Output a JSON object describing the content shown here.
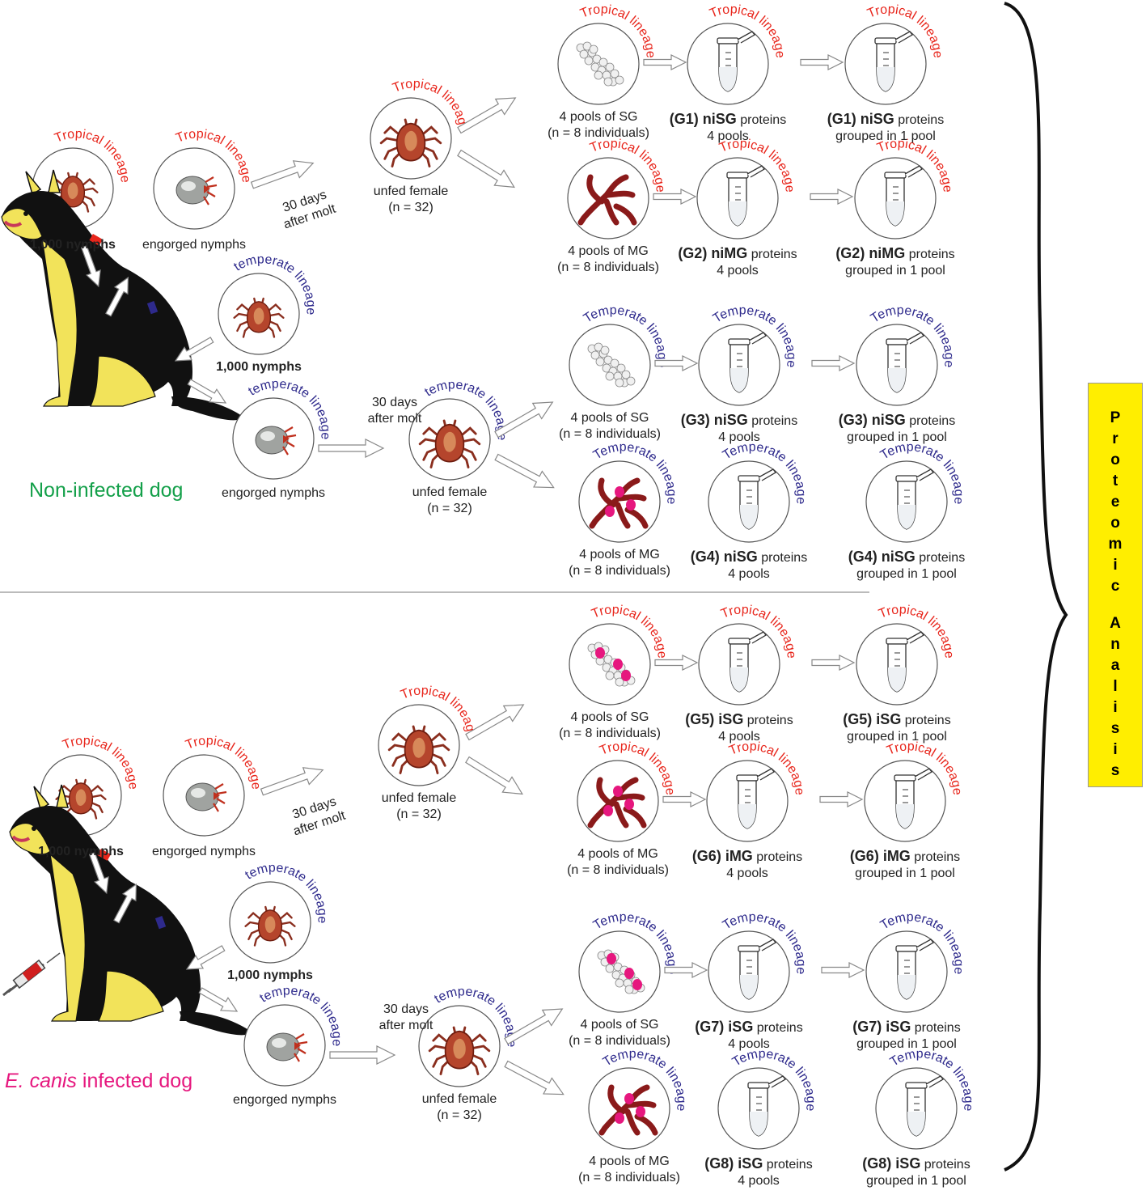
{
  "labels": {
    "tropical": "Tropical lineage",
    "temperate_lower": "temperate lineage",
    "temperate_upper": "Temperate lineage",
    "nymphs": "1,000 nymphs",
    "engorged": "engorged nymphs",
    "days": "30 days",
    "after_molt": "after molt",
    "unfed": "unfed female",
    "n32": "(n = 32)",
    "pools_sg": "4 pools of SG",
    "pools_mg": "4 pools of MG",
    "n8": "(n = 8 individuals)",
    "proteins": "proteins",
    "four_pools": "4 pools",
    "grouped": "grouped in 1 pool"
  },
  "groups": {
    "g1": {
      "code": "(G1)",
      "name": "niSG"
    },
    "g2": {
      "code": "(G2)",
      "name": "niMG"
    },
    "g3": {
      "code": "(G3)",
      "name": "niSG"
    },
    "g4": {
      "code": "(G4)",
      "name": "niSG"
    },
    "g5": {
      "code": "(G5)",
      "name": "iSG"
    },
    "g6": {
      "code": "(G6)",
      "name": "iMG"
    },
    "g7": {
      "code": "(G7)",
      "name": "iSG"
    },
    "g8": {
      "code": "(G8)",
      "name": "iSG"
    }
  },
  "dogs": {
    "noninfected": "Non-infected dog",
    "infected_species": "E. canis",
    "infected_rest": " infected dog"
  },
  "proteomic": "Proteomic Analisis",
  "colors": {
    "tropical": "#e8261c",
    "temperate": "#2e2a8c",
    "noninfected": "#14a04a",
    "infected": "#e6177e",
    "highlight": "#ffee00"
  }
}
